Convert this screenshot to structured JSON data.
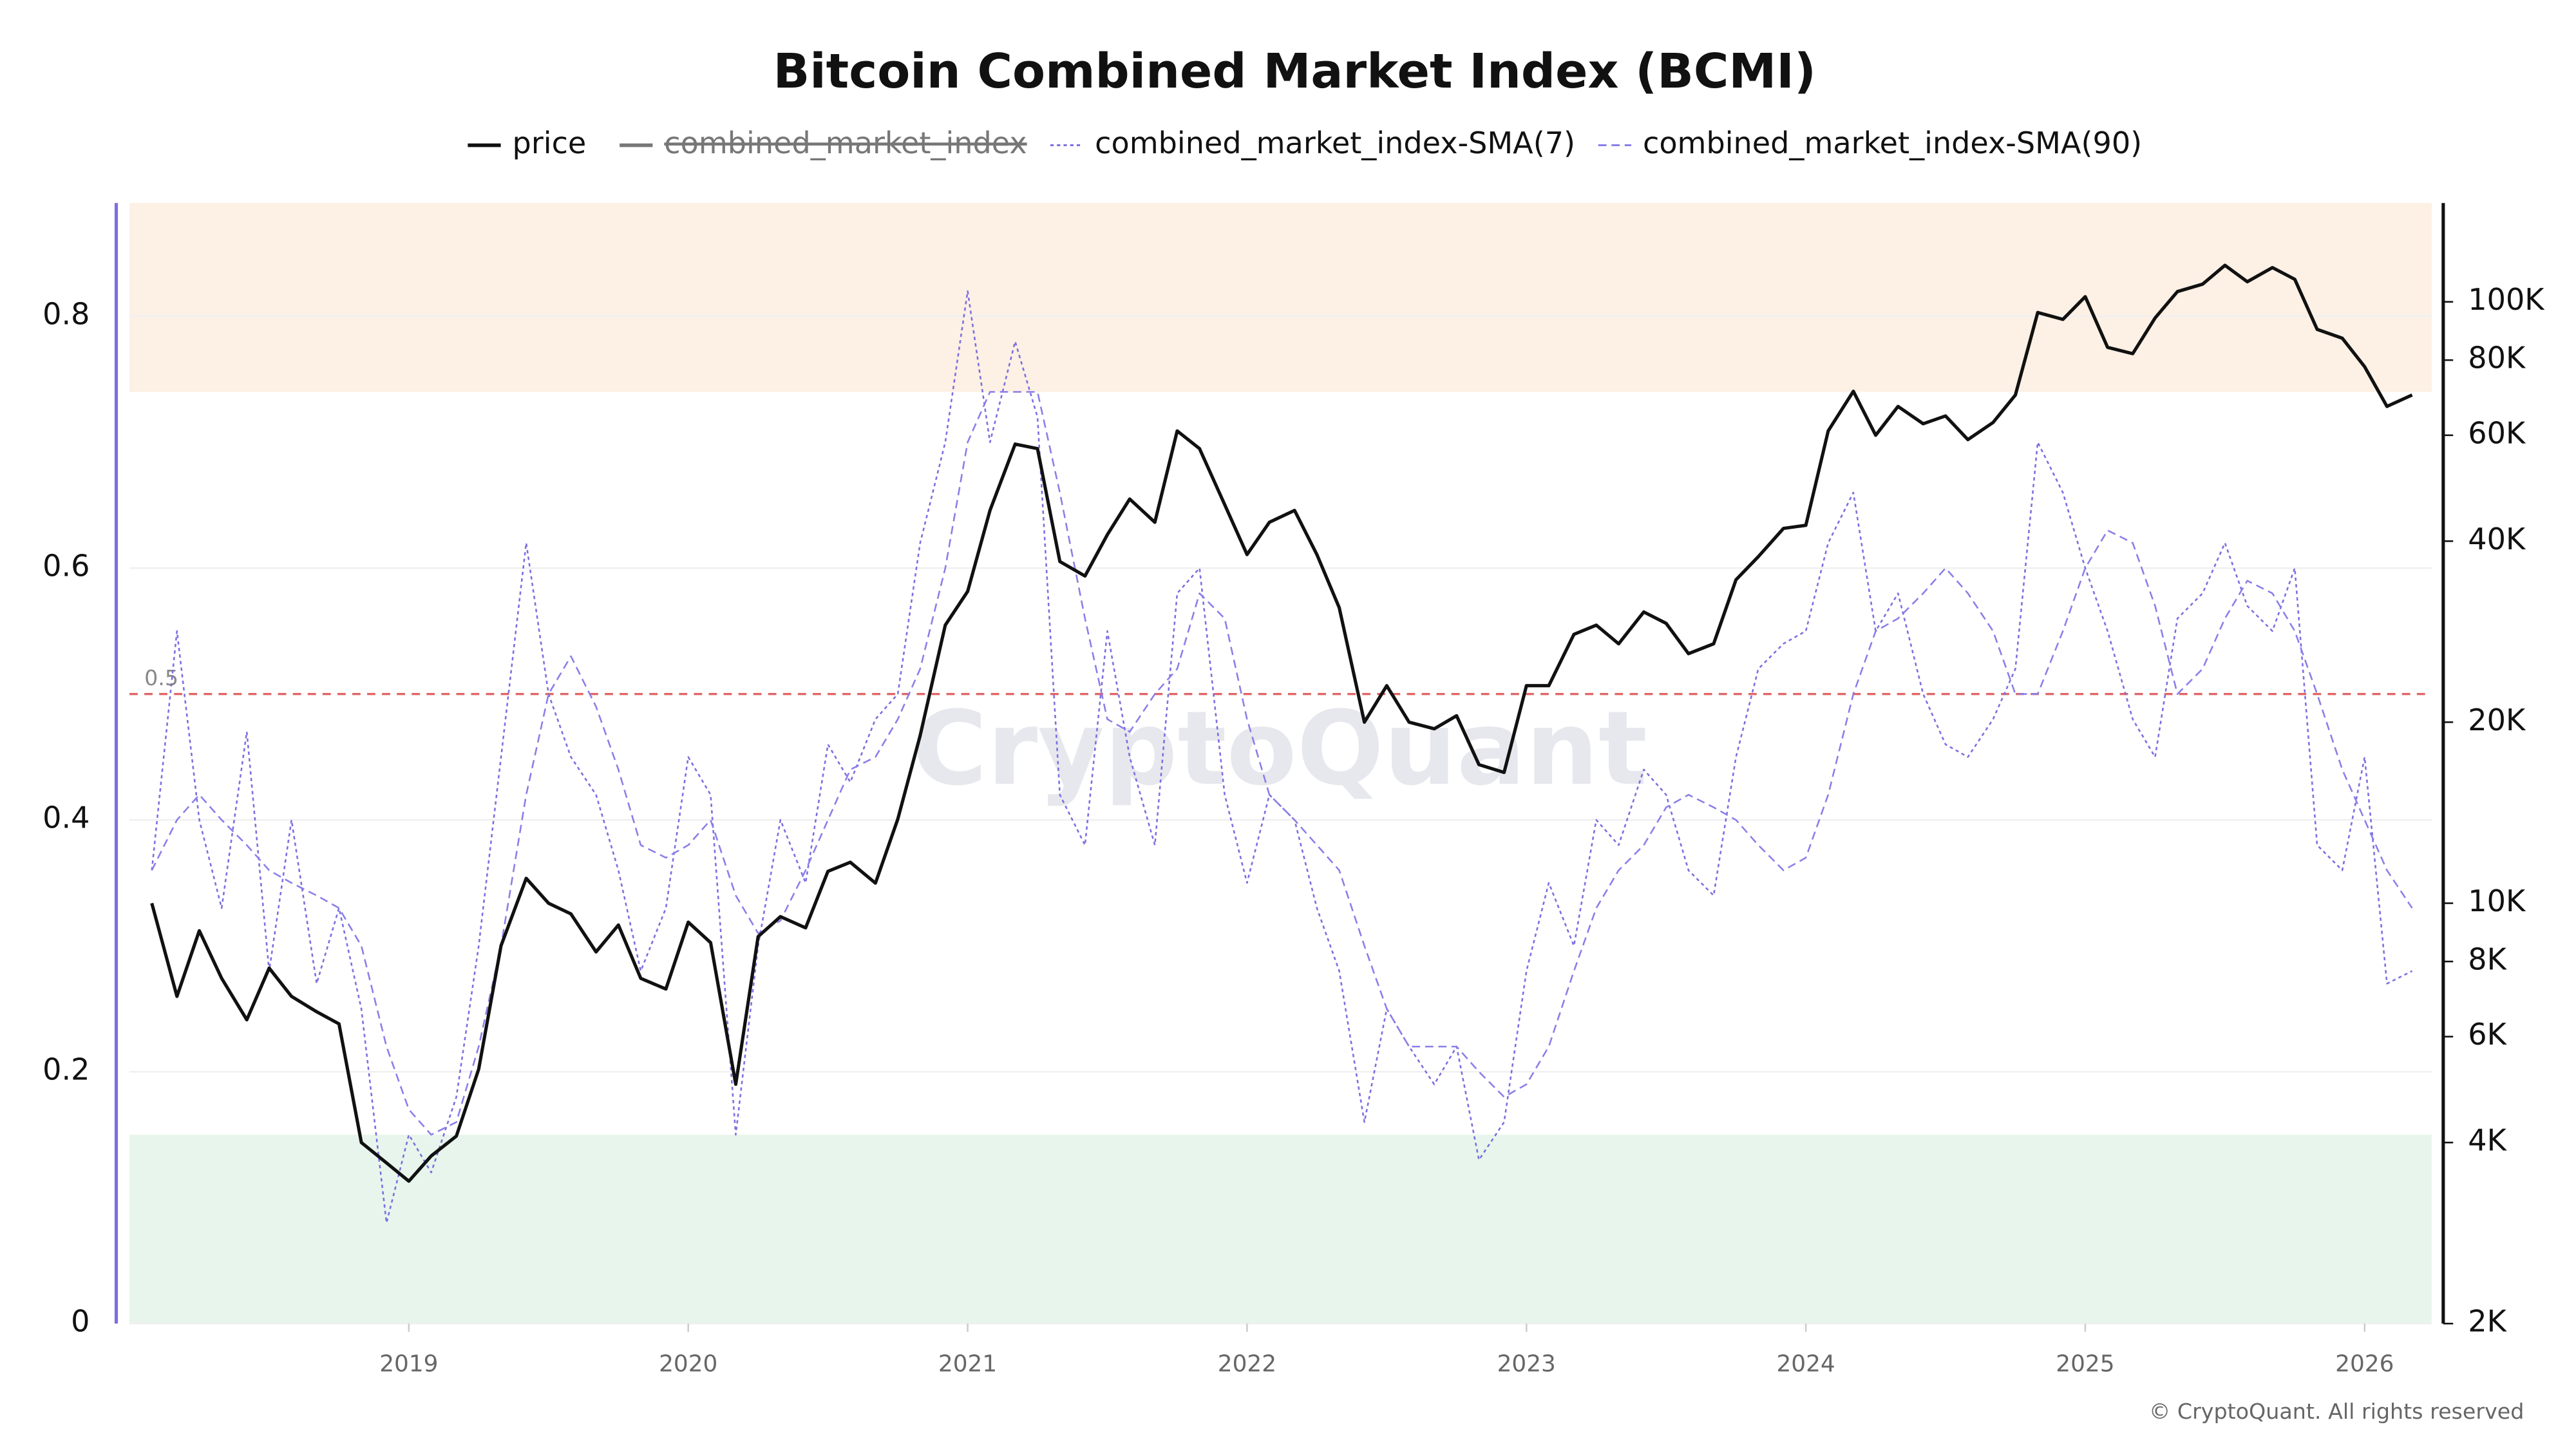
{
  "chart_data": {
    "type": "line",
    "title": "Bitcoin Combined Market Index (BCMI)",
    "watermark": "CryptoQuant",
    "credit": "© CryptoQuant. All rights reserved",
    "legend": "top",
    "grid": true,
    "xlim": [
      2018.0,
      2026.24
    ],
    "xticks": [
      2019,
      2020,
      2021,
      2022,
      2023,
      2024,
      2025,
      2026
    ],
    "ylim": [
      0,
      0.89
    ],
    "yticks": [
      0,
      0.2,
      0.4,
      0.6,
      0.8
    ],
    "y2lim": [
      2000,
      146000
    ],
    "y2log": true,
    "y2ticks": [
      {
        "value": 2000,
        "label": "2K"
      },
      {
        "value": 4000,
        "label": "4K"
      },
      {
        "value": 6000,
        "label": "6K"
      },
      {
        "value": 8000,
        "label": "8K"
      },
      {
        "value": 10000,
        "label": "10K"
      },
      {
        "value": 20000,
        "label": "20K"
      },
      {
        "value": 40000,
        "label": "40K"
      },
      {
        "value": 60000,
        "label": "60K"
      },
      {
        "value": 80000,
        "label": "80K"
      },
      {
        "value": 100000,
        "label": "100K"
      }
    ],
    "bands": [
      {
        "from": 0.74,
        "to": 0.89,
        "color": "#fdf0e4"
      },
      {
        "from": 0,
        "to": 0.15,
        "color": "#e8f5ec"
      }
    ],
    "hline": {
      "value": 0.5,
      "color": "#e06666"
    },
    "x": [
      2018.08,
      2018.17,
      2018.25,
      2018.33,
      2018.42,
      2018.5,
      2018.58,
      2018.67,
      2018.75,
      2018.83,
      2018.92,
      2019.0,
      2019.08,
      2019.17,
      2019.25,
      2019.33,
      2019.42,
      2019.5,
      2019.58,
      2019.67,
      2019.75,
      2019.83,
      2019.92,
      2020.0,
      2020.08,
      2020.17,
      2020.25,
      2020.33,
      2020.42,
      2020.5,
      2020.58,
      2020.67,
      2020.75,
      2020.83,
      2020.92,
      2021.0,
      2021.08,
      2021.17,
      2021.25,
      2021.33,
      2021.42,
      2021.5,
      2021.58,
      2021.67,
      2021.75,
      2021.83,
      2021.92,
      2022.0,
      2022.08,
      2022.17,
      2022.25,
      2022.33,
      2022.42,
      2022.5,
      2022.58,
      2022.67,
      2022.75,
      2022.83,
      2022.92,
      2023.0,
      2023.08,
      2023.17,
      2023.25,
      2023.33,
      2023.42,
      2023.5,
      2023.58,
      2023.67,
      2023.75,
      2023.83,
      2023.92,
      2024.0,
      2024.08,
      2024.17,
      2024.25,
      2024.33,
      2024.42,
      2024.5,
      2024.58,
      2024.67,
      2024.75,
      2024.83,
      2024.92,
      2025.0,
      2025.08,
      2025.17,
      2025.25,
      2025.33,
      2025.42,
      2025.5,
      2025.58,
      2025.67,
      2025.75,
      2025.83,
      2025.92,
      2026.0,
      2026.08,
      2026.17
    ],
    "series": [
      {
        "name": "price",
        "color": "#111111",
        "style": "solid",
        "axis": "y2",
        "values": [
          10000,
          7000,
          9000,
          7500,
          6400,
          7800,
          7000,
          6600,
          6300,
          4000,
          3700,
          3450,
          3800,
          4100,
          5300,
          8500,
          11000,
          10000,
          9600,
          8300,
          9200,
          7500,
          7200,
          9300,
          8600,
          5000,
          8800,
          9500,
          9100,
          11300,
          11700,
          10800,
          13800,
          19000,
          29000,
          33000,
          45000,
          58000,
          57000,
          37000,
          35000,
          41000,
          47000,
          43000,
          61000,
          57000,
          46000,
          38000,
          43000,
          45000,
          38000,
          31000,
          20000,
          23000,
          20000,
          19500,
          20500,
          17000,
          16500,
          23000,
          23000,
          28000,
          29000,
          27000,
          30500,
          29200,
          26000,
          27000,
          34500,
          37700,
          42000,
          42500,
          61000,
          71000,
          60000,
          67000,
          62700,
          64600,
          59000,
          63000,
          70000,
          96000,
          93500,
          102000,
          84000,
          82000,
          94000,
          104000,
          107000,
          115000,
          108000,
          114000,
          109000,
          90000,
          87000,
          78000,
          67000,
          70000
        ]
      },
      {
        "name": "combined_market_index",
        "color": "#777777",
        "style": "solid",
        "hidden": true
      },
      {
        "name": "combined_market_index-SMA(7)",
        "color": "#7b6fe0",
        "style": "dotted",
        "values": [
          0.36,
          0.55,
          0.4,
          0.33,
          0.47,
          0.28,
          0.4,
          0.27,
          0.33,
          0.25,
          0.08,
          0.15,
          0.12,
          0.18,
          0.3,
          0.45,
          0.62,
          0.5,
          0.45,
          0.42,
          0.36,
          0.28,
          0.33,
          0.45,
          0.42,
          0.15,
          0.3,
          0.4,
          0.35,
          0.46,
          0.43,
          0.48,
          0.5,
          0.62,
          0.7,
          0.82,
          0.7,
          0.78,
          0.72,
          0.42,
          0.38,
          0.55,
          0.45,
          0.38,
          0.58,
          0.6,
          0.42,
          0.35,
          0.42,
          0.4,
          0.33,
          0.28,
          0.16,
          0.25,
          0.22,
          0.19,
          0.22,
          0.13,
          0.16,
          0.28,
          0.35,
          0.3,
          0.4,
          0.38,
          0.44,
          0.42,
          0.36,
          0.34,
          0.45,
          0.52,
          0.54,
          0.55,
          0.62,
          0.66,
          0.55,
          0.58,
          0.5,
          0.46,
          0.45,
          0.48,
          0.52,
          0.7,
          0.66,
          0.6,
          0.55,
          0.48,
          0.45,
          0.56,
          0.58,
          0.62,
          0.57,
          0.55,
          0.6,
          0.38,
          0.36,
          0.45,
          0.27,
          0.28
        ]
      },
      {
        "name": "combined_market_index-SMA(90)",
        "color": "#8a7fe8",
        "style": "dashed",
        "values": [
          0.36,
          0.4,
          0.42,
          0.4,
          0.38,
          0.36,
          0.35,
          0.34,
          0.33,
          0.3,
          0.22,
          0.17,
          0.15,
          0.16,
          0.22,
          0.3,
          0.42,
          0.5,
          0.53,
          0.49,
          0.44,
          0.38,
          0.37,
          0.38,
          0.4,
          0.34,
          0.31,
          0.32,
          0.36,
          0.4,
          0.44,
          0.45,
          0.48,
          0.52,
          0.6,
          0.7,
          0.74,
          0.74,
          0.74,
          0.66,
          0.56,
          0.48,
          0.47,
          0.5,
          0.52,
          0.58,
          0.56,
          0.48,
          0.42,
          0.4,
          0.38,
          0.36,
          0.3,
          0.25,
          0.22,
          0.22,
          0.22,
          0.2,
          0.18,
          0.19,
          0.22,
          0.28,
          0.33,
          0.36,
          0.38,
          0.41,
          0.42,
          0.41,
          0.4,
          0.38,
          0.36,
          0.37,
          0.42,
          0.5,
          0.55,
          0.56,
          0.58,
          0.6,
          0.58,
          0.55,
          0.5,
          0.5,
          0.55,
          0.6,
          0.63,
          0.62,
          0.57,
          0.5,
          0.52,
          0.56,
          0.59,
          0.58,
          0.55,
          0.5,
          0.44,
          0.4,
          0.36,
          0.33
        ]
      }
    ]
  }
}
